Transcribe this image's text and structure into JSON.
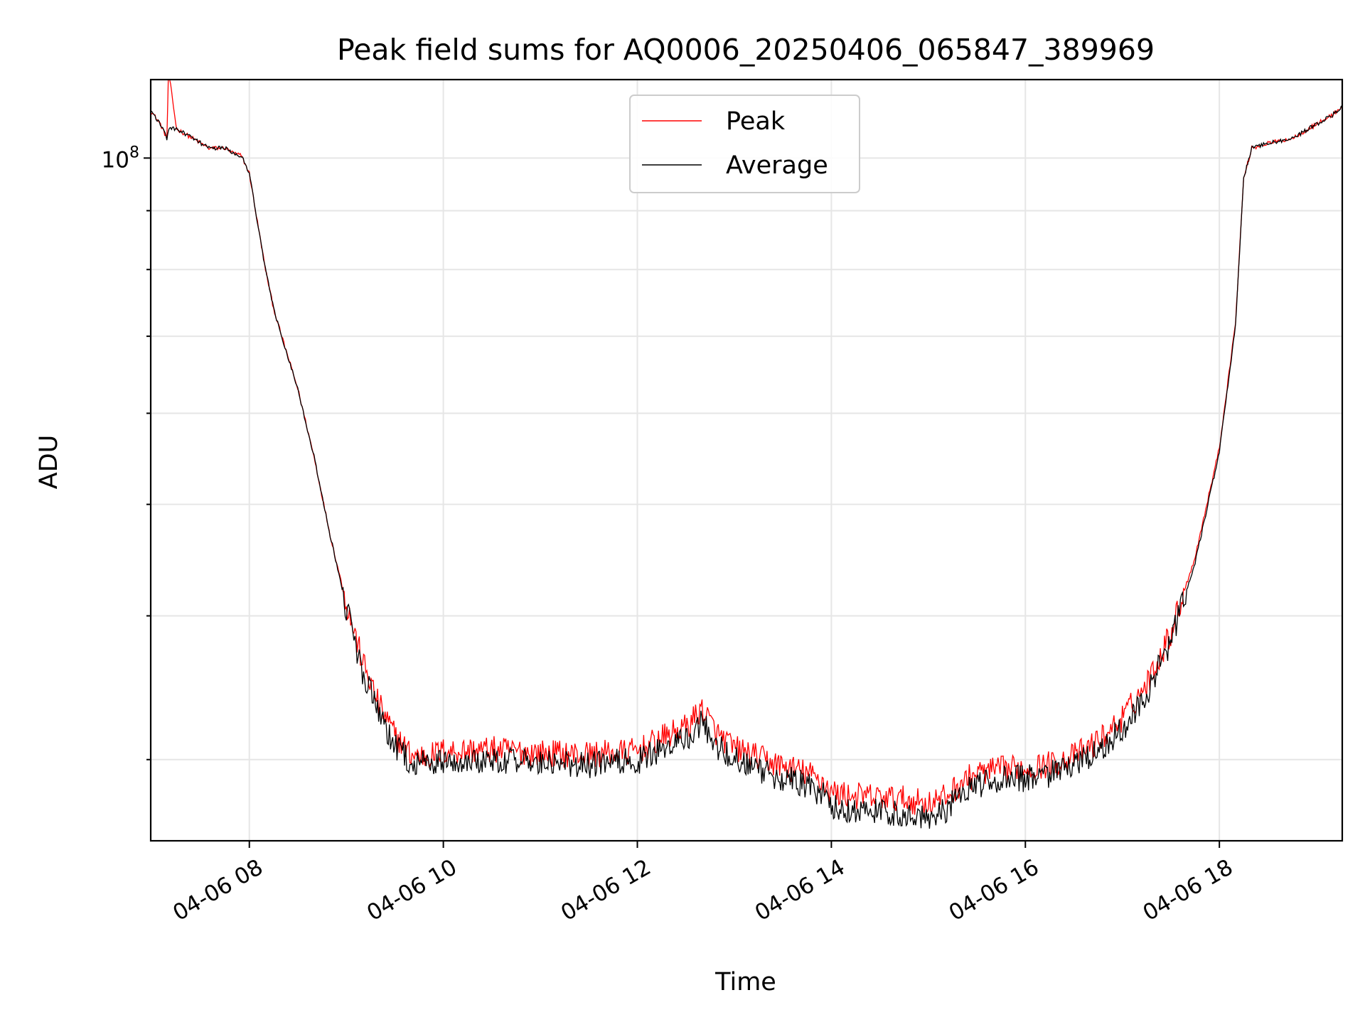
{
  "chart_data": {
    "type": "line",
    "title": "Peak field sums for AQ0006_20250406_065847_389969",
    "xlabel": "Time",
    "ylabel": "ADU",
    "x_scale": "time",
    "y_scale": "log",
    "xlim": [
      "04-06 06:59",
      "04-06 19:16"
    ],
    "ylim": [
      25500000.0,
      117000000.0
    ],
    "x_ticks": [
      {
        "x": "04-06 08:00",
        "label": "04-06 08"
      },
      {
        "x": "04-06 10:00",
        "label": "04-06 10"
      },
      {
        "x": "04-06 12:00",
        "label": "04-06 12"
      },
      {
        "x": "04-06 14:00",
        "label": "04-06 14"
      },
      {
        "x": "04-06 16:00",
        "label": "04-06 16"
      },
      {
        "x": "04-06 18:00",
        "label": "04-06 18"
      }
    ],
    "y_major_ticks": [
      {
        "value": 100000000.0,
        "label_base": "10",
        "label_exp": "8"
      }
    ],
    "y_minor_ticks": [
      30000000.0,
      40000000.0,
      50000000.0,
      60000000.0,
      70000000.0,
      80000000.0,
      90000000.0
    ],
    "grid": true,
    "legend_position": "top-center",
    "series": [
      {
        "name": "Peak",
        "color": "#ff0000",
        "x": [
          "04-06 06:59",
          "04-06 07:05",
          "07:09",
          "07:10",
          "07:15",
          "07:25",
          "07:35",
          "07:45",
          "07:50",
          "07:55",
          "08:00",
          "08:05",
          "08:10",
          "08:15",
          "08:20",
          "08:30",
          "08:40",
          "08:50",
          "09:00",
          "09:10",
          "09:20",
          "09:30",
          "09:40",
          "09:50",
          "10:00",
          "10:30",
          "11:00",
          "11:30",
          "12:00",
          "12:15",
          "12:30",
          "12:40",
          "12:50",
          "13:00",
          "13:15",
          "13:30",
          "13:45",
          "13:55",
          "14:00",
          "14:15",
          "14:30",
          "14:45",
          "15:00",
          "15:10",
          "15:20",
          "15:30",
          "15:45",
          "16:00",
          "16:15",
          "16:30",
          "16:45",
          "17:00",
          "17:15",
          "17:30",
          "17:45",
          "18:00",
          "18:10",
          "18:15",
          "18:20",
          "18:30",
          "18:45",
          "19:00",
          "19:10",
          "19:16"
        ],
        "x_full": [
          "04-06 06:59",
          "04-06 07:05",
          "04-06 07:09",
          "04-06 07:10",
          "04-06 07:15",
          "04-06 07:25",
          "04-06 07:35",
          "04-06 07:45",
          "04-06 07:50",
          "04-06 07:55",
          "04-06 08:00",
          "04-06 08:05",
          "04-06 08:10",
          "04-06 08:15",
          "04-06 08:20",
          "04-06 08:30",
          "04-06 08:40",
          "04-06 08:50",
          "04-06 09:00",
          "04-06 09:10",
          "04-06 09:20",
          "04-06 09:30",
          "04-06 09:40",
          "04-06 09:50",
          "04-06 10:00",
          "04-06 10:30",
          "04-06 11:00",
          "04-06 11:30",
          "04-06 12:00",
          "04-06 12:15",
          "04-06 12:30",
          "04-06 12:40",
          "04-06 12:50",
          "04-06 13:00",
          "04-06 13:15",
          "04-06 13:30",
          "04-06 13:45",
          "04-06 13:55",
          "04-06 14:00",
          "04-06 14:15",
          "04-06 14:30",
          "04-06 14:45",
          "04-06 15:00",
          "04-06 15:10",
          "04-06 15:20",
          "04-06 15:30",
          "04-06 15:45",
          "04-06 16:00",
          "04-06 16:15",
          "04-06 16:30",
          "04-06 16:45",
          "04-06 17:00",
          "04-06 17:15",
          "04-06 17:30",
          "04-06 17:45",
          "04-06 18:00",
          "04-06 18:10",
          "04-06 18:15",
          "04-06 18:20",
          "04-06 18:30",
          "04-06 18:45",
          "04-06 19:00",
          "04-06 19:10",
          "04-06 19:16"
        ],
        "y": [
          110000000,
          107000000,
          104000000,
          119000000,
          106000000,
          104000000,
          102000000,
          102000000,
          101000000,
          100500000,
          97000000,
          88000000,
          80000000,
          74000000,
          70000000,
          63000000,
          55000000,
          47000000,
          41000000,
          36500000,
          33500000,
          31500000,
          30300000,
          30200000,
          30500000,
          30600000,
          30400000,
          30300000,
          30500000,
          31300000,
          32000000,
          33200000,
          31500000,
          30700000,
          30100000,
          29600000,
          29200000,
          28700000,
          28100000,
          27900000,
          27800000,
          27700000,
          27500000,
          27800000,
          28600000,
          29200000,
          29400000,
          29500000,
          29700000,
          30200000,
          31100000,
          32600000,
          34900000,
          38700000,
          45000000,
          56000000,
          72000000,
          96000000,
          102000000,
          103000000,
          104000000,
          107000000,
          109000000,
          111000000
        ]
      },
      {
        "name": "Average",
        "color": "#000000",
        "x_full": [
          "04-06 06:59",
          "04-06 07:05",
          "04-06 07:09",
          "04-06 07:10",
          "04-06 07:15",
          "04-06 07:25",
          "04-06 07:35",
          "04-06 07:45",
          "04-06 07:50",
          "04-06 07:55",
          "04-06 08:00",
          "04-06 08:05",
          "04-06 08:10",
          "04-06 08:15",
          "04-06 08:20",
          "04-06 08:30",
          "04-06 08:40",
          "04-06 08:50",
          "04-06 09:00",
          "04-06 09:10",
          "04-06 09:20",
          "04-06 09:30",
          "04-06 09:40",
          "04-06 09:50",
          "04-06 10:00",
          "04-06 10:30",
          "04-06 11:00",
          "04-06 11:30",
          "04-06 12:00",
          "04-06 12:15",
          "04-06 12:30",
          "04-06 12:40",
          "04-06 12:50",
          "04-06 13:00",
          "04-06 13:15",
          "04-06 13:30",
          "04-06 13:45",
          "04-06 13:55",
          "04-06 14:00",
          "04-06 14:15",
          "04-06 14:30",
          "04-06 14:45",
          "04-06 15:00",
          "04-06 15:10",
          "04-06 15:20",
          "04-06 15:30",
          "04-06 15:45",
          "04-06 16:00",
          "04-06 16:15",
          "04-06 16:30",
          "04-06 16:45",
          "04-06 17:00",
          "04-06 17:15",
          "04-06 17:30",
          "04-06 17:45",
          "04-06 18:00",
          "04-06 18:10",
          "04-06 18:15",
          "04-06 18:20",
          "04-06 18:30",
          "04-06 18:45",
          "04-06 19:00",
          "04-06 19:10",
          "04-06 19:16"
        ],
        "y": [
          110000000,
          107000000,
          104000000,
          106000000,
          106000000,
          104000000,
          102000000,
          102000000,
          101000000,
          100500000,
          97000000,
          88000000,
          80000000,
          74000000,
          70000000,
          63000000,
          55000000,
          47000000,
          40500000,
          35800000,
          32800000,
          30800000,
          29800000,
          29700000,
          29900000,
          30000000,
          29800000,
          29700000,
          29900000,
          30600000,
          31300000,
          32300000,
          30800000,
          30000000,
          29400000,
          28900000,
          28500000,
          28000000,
          27300000,
          27100000,
          27000000,
          26900000,
          26800000,
          27100000,
          27900000,
          28500000,
          28800000,
          28900000,
          29100000,
          29600000,
          30500000,
          31900000,
          34200000,
          38000000,
          44500000,
          55500000,
          71500000,
          96000000,
          102000000,
          103000000,
          104000000,
          107000000,
          109000000,
          111000000
        ]
      }
    ]
  }
}
